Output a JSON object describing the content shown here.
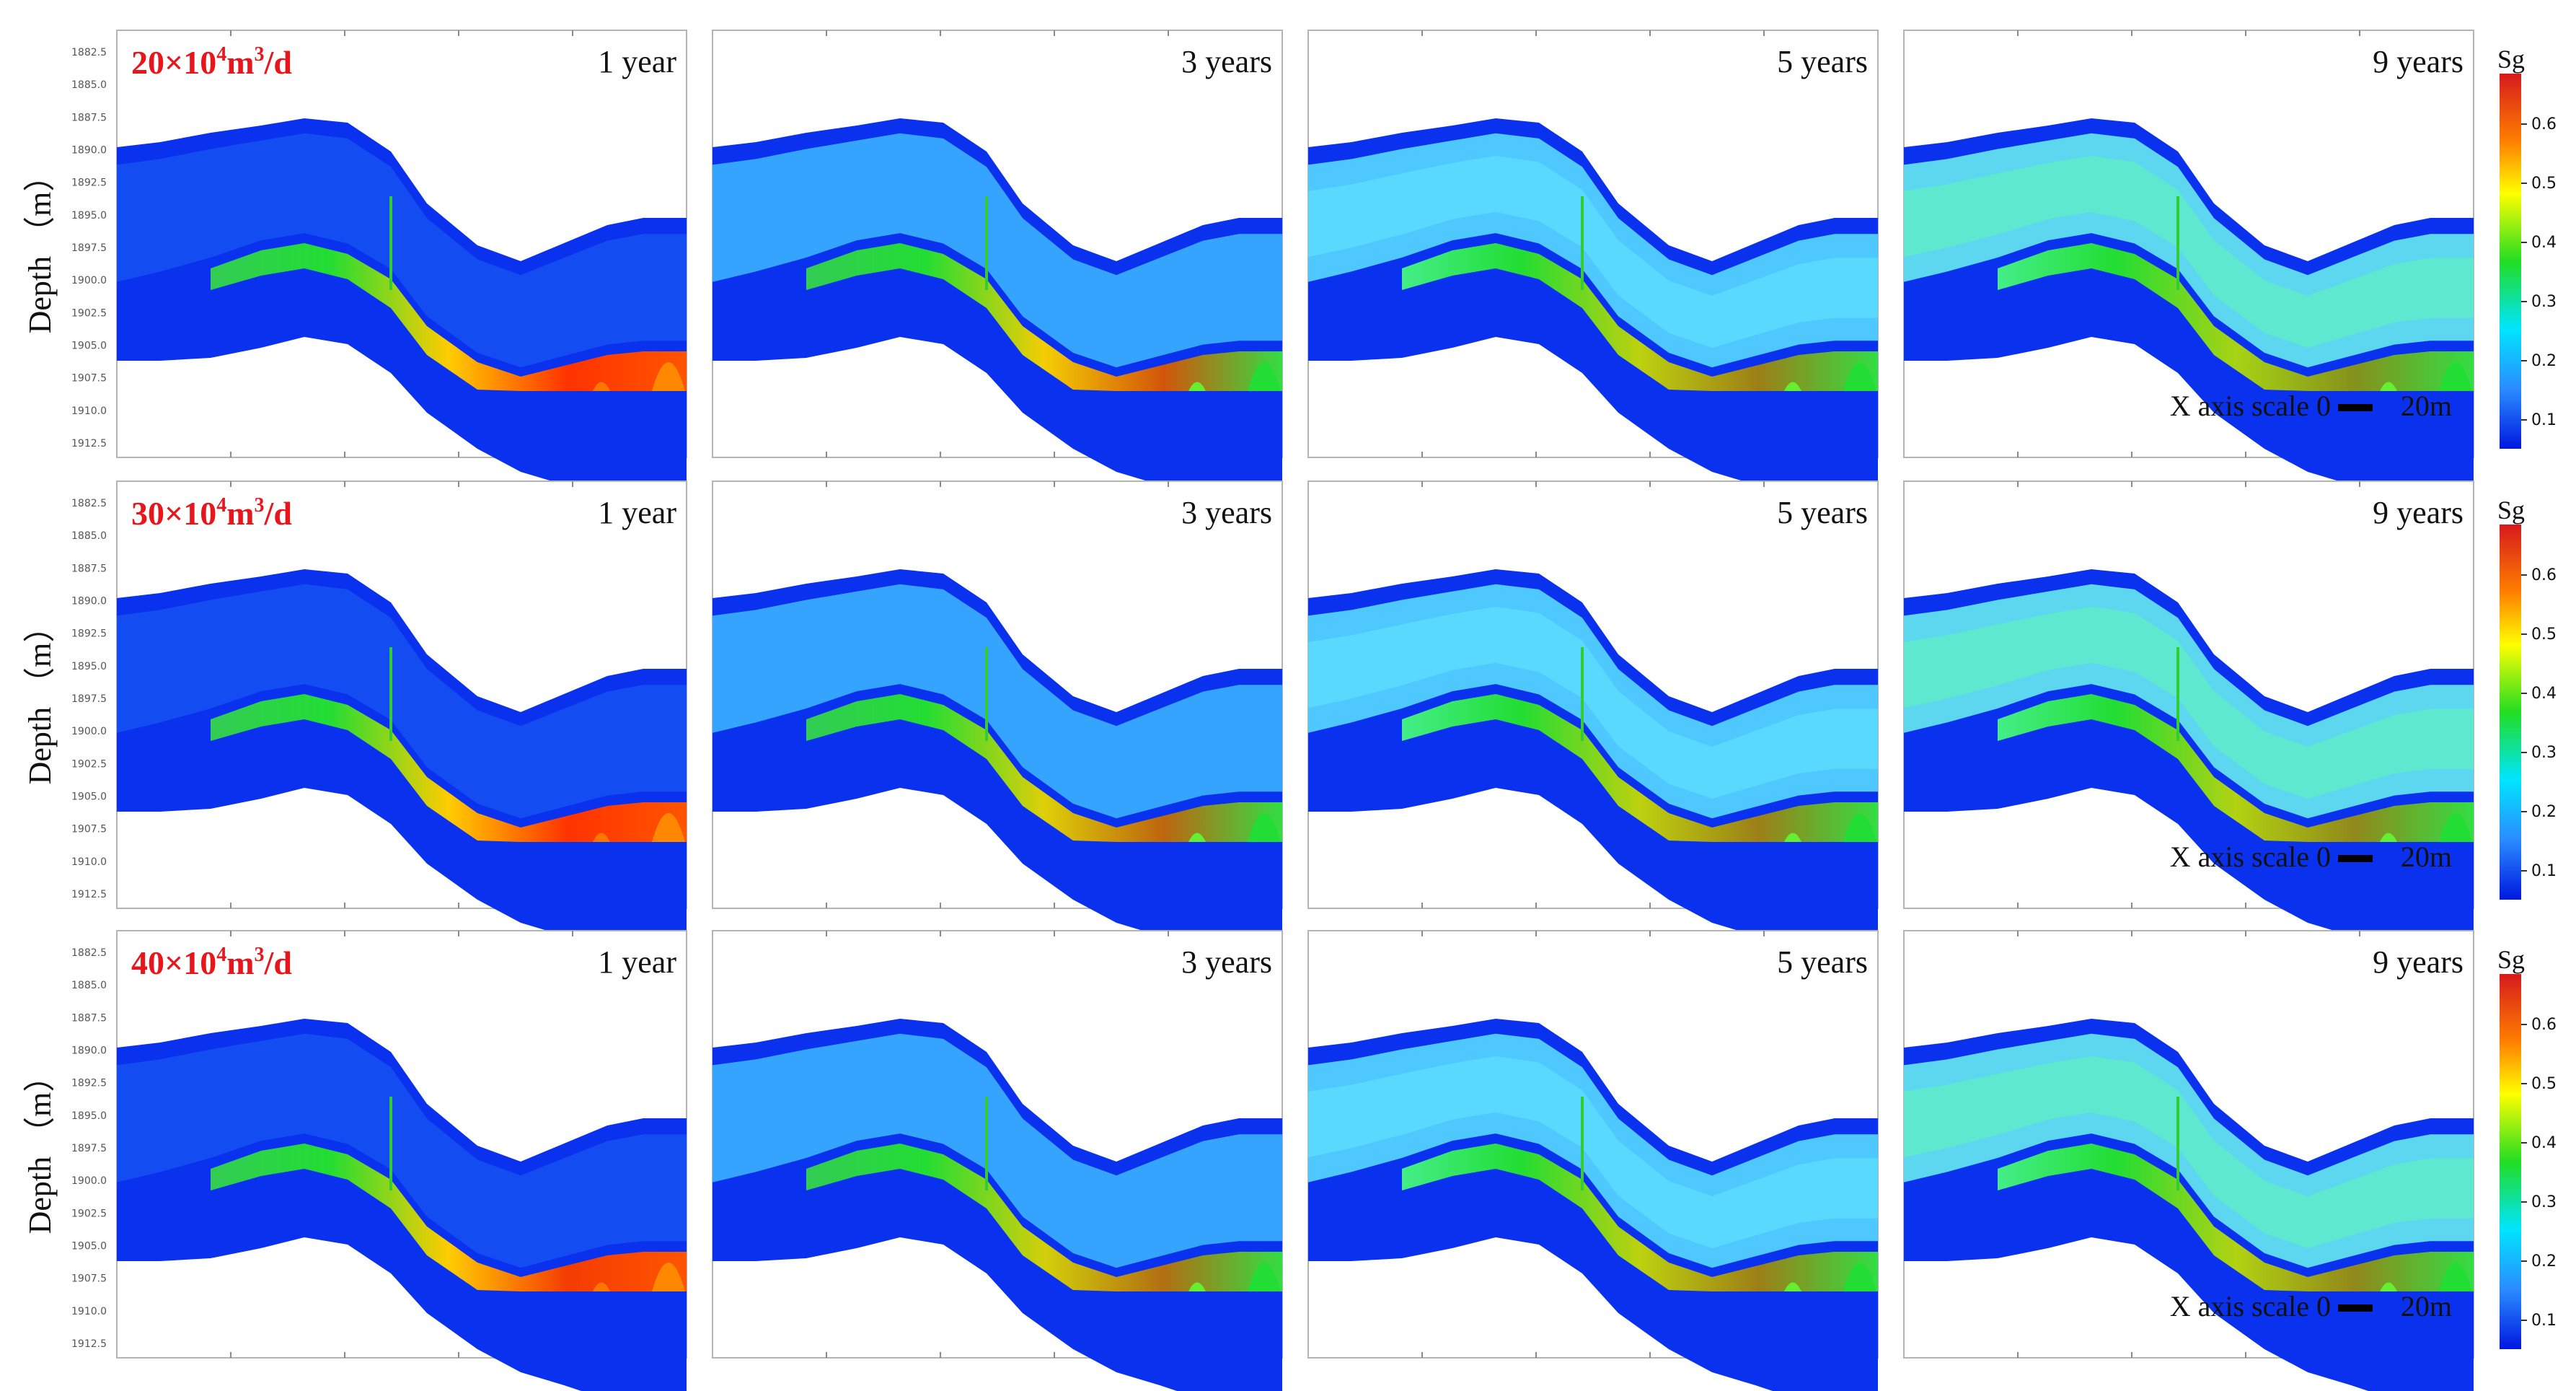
{
  "y_axis": {
    "label": "Depth （m）",
    "ticks": [
      "1882.5",
      "1885.0",
      "1887.5",
      "1890.0",
      "1892.5",
      "1895.0",
      "1897.5",
      "1900.0",
      "1902.5",
      "1905.0",
      "1907.5",
      "1910.0",
      "1912.5"
    ]
  },
  "rows": [
    {
      "rate_label": {
        "base": "20×10",
        "exp": "4",
        "unit_a": "m",
        "unit_exp": "3",
        "unit_b": "/d"
      },
      "panels": [
        {
          "time": "1 year",
          "stage": 0,
          "intensity": 1.0
        },
        {
          "time": "3 years",
          "stage": 1,
          "intensity": 0.8
        },
        {
          "time": "5 years",
          "stage": 2,
          "intensity": 0.55
        },
        {
          "time": "9 years",
          "stage": 3,
          "intensity": 0.45
        }
      ],
      "scale_label": "X axis scale  0",
      "scale_end": "20m"
    },
    {
      "rate_label": {
        "base": "30×10",
        "exp": "4",
        "unit_a": "m",
        "unit_exp": "3",
        "unit_b": "/d"
      },
      "panels": [
        {
          "time": "1 year",
          "stage": 0,
          "intensity": 1.0
        },
        {
          "time": "3 years",
          "stage": 1,
          "intensity": 0.7
        },
        {
          "time": "5 years",
          "stage": 2,
          "intensity": 0.55
        },
        {
          "time": "9 years",
          "stage": 3,
          "intensity": 0.5
        }
      ],
      "scale_label": "X axis scale  0",
      "scale_end": "20m"
    },
    {
      "rate_label": {
        "base": "40×10",
        "exp": "4",
        "unit_a": "m",
        "unit_exp": "3",
        "unit_b": "/d"
      },
      "panels": [
        {
          "time": "1 year",
          "stage": 0,
          "intensity": 0.95
        },
        {
          "time": "3 years",
          "stage": 1,
          "intensity": 0.65
        },
        {
          "time": "5 years",
          "stage": 2,
          "intensity": 0.55
        },
        {
          "time": "9 years",
          "stage": 3,
          "intensity": 0.5
        }
      ],
      "scale_label": "X axis scale  0",
      "scale_end": "20m"
    }
  ],
  "colorbar": {
    "title": "Sg",
    "ticks": [
      "0.6",
      "0.5",
      "0.4",
      "0.3",
      "0.2",
      "0.1"
    ]
  },
  "colors": {
    "rate_label": "#e8161b",
    "deep_blue": "#0a32ee",
    "label_text": "#111111"
  }
}
